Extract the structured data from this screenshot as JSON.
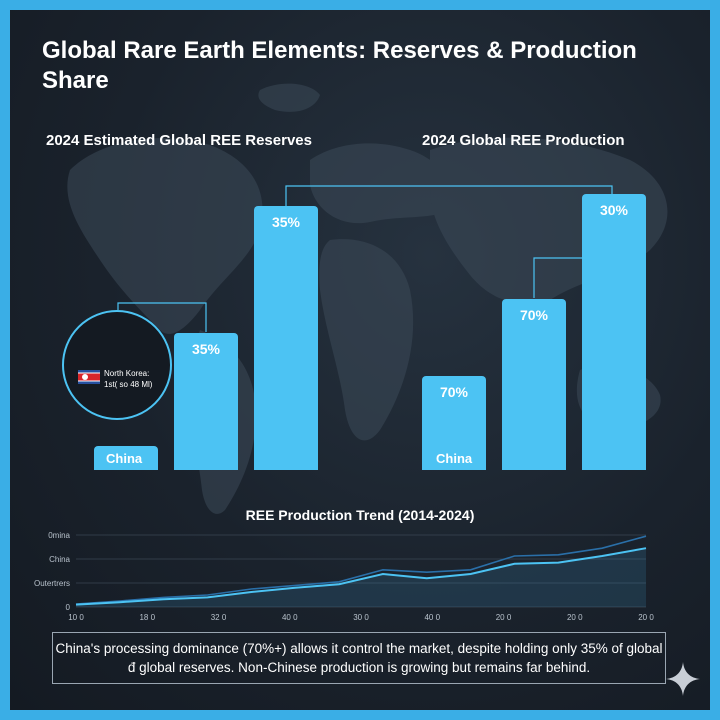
{
  "title": "Global Rare Earth Elements: Reserves & Production Share",
  "colors": {
    "bar": "#4cc3f3",
    "background": "#1a222c",
    "frame": "#3aaee6",
    "trend_primary": "#4cc3f3",
    "trend_secondary": "#2a6fa8"
  },
  "chart_data": [
    {
      "type": "bar",
      "title": "2024 Estimated Global REE Reserves",
      "bars": [
        {
          "label": "China",
          "value_label": "",
          "relative_height": 0.09
        },
        {
          "label": "",
          "value_label": "35%",
          "relative_height": 0.52
        },
        {
          "label": "",
          "value_label": "35%",
          "relative_height": 1.0
        }
      ],
      "callout": {
        "line1": "North Korea:",
        "line2": "1st( so 48 Ml)",
        "icon": "north-korea-flag-icon"
      }
    },
    {
      "type": "bar",
      "title": "2024 Global REE Production",
      "bars": [
        {
          "label": "China",
          "value_label": "70%",
          "relative_height": 0.34
        },
        {
          "label": "",
          "value_label": "70%",
          "relative_height": 0.62
        },
        {
          "label": "",
          "value_label": "30%",
          "relative_height": 1.0
        }
      ]
    },
    {
      "type": "line",
      "title": "REE Production Trend (2014-2024)",
      "y_tick_labels": [
        "0mina",
        "China",
        "Outertrers",
        "0"
      ],
      "x_tick_labels": [
        "10 0",
        "18 0",
        "32 0",
        "40 0",
        "30 0",
        "40 0",
        "20 0",
        "20 0",
        "20 0"
      ],
      "series": [
        {
          "values": [
            0.05,
            0.1,
            0.16,
            0.2,
            0.3,
            0.36,
            0.42,
            0.62,
            0.58,
            0.62,
            0.85,
            0.87,
            0.98,
            1.18
          ]
        },
        {
          "values": [
            0.04,
            0.08,
            0.13,
            0.16,
            0.25,
            0.32,
            0.38,
            0.55,
            0.48,
            0.55,
            0.72,
            0.74,
            0.85,
            0.98
          ]
        }
      ]
    }
  ],
  "note": "China's processing dominance (70%+) allows it control the market, despite holding only 35% of global đ global reserves. Non-Chinese production is growing but remains far behind."
}
